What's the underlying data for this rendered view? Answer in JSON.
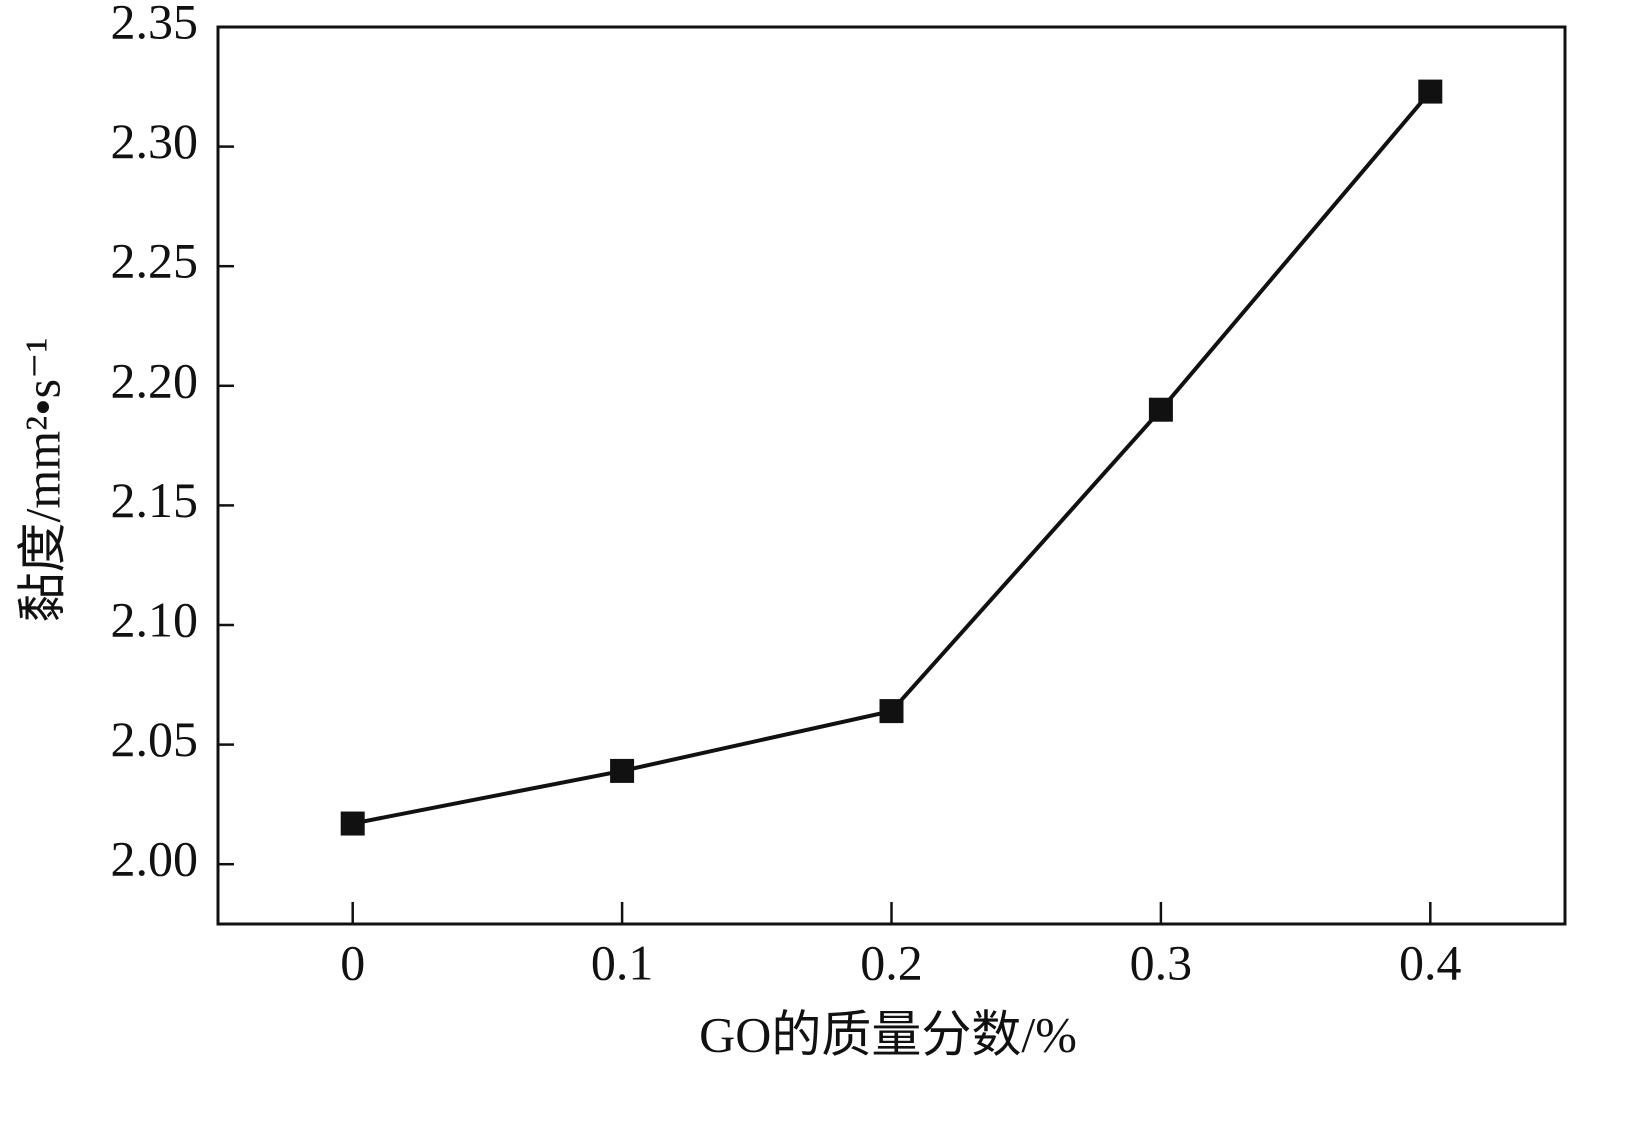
{
  "chart_data": {
    "type": "line",
    "x_label": "GO的质量分数/%",
    "y_label": "黏度/mm²•s⁻¹",
    "x": [
      0,
      0.1,
      0.2,
      0.3,
      0.4
    ],
    "series": [
      {
        "color": "#111111",
        "values": [
          2.017,
          2.039,
          2.064,
          2.19,
          2.323
        ]
      }
    ],
    "xlim": [
      -0.05,
      0.45
    ],
    "xticks": [
      0,
      0.1,
      0.2,
      0.3,
      0.4
    ],
    "ylim": [
      1.975,
      2.35
    ],
    "yticks": [
      {
        "value": 2.0,
        "label": "2.00"
      },
      2.05,
      {
        "value": 2.1,
        "label": "2.10"
      },
      2.15,
      {
        "value": 2.2,
        "label": "2.20"
      },
      2.25,
      {
        "value": 2.3,
        "label": "2.30"
      },
      2.35
    ],
    "grid": false
  }
}
